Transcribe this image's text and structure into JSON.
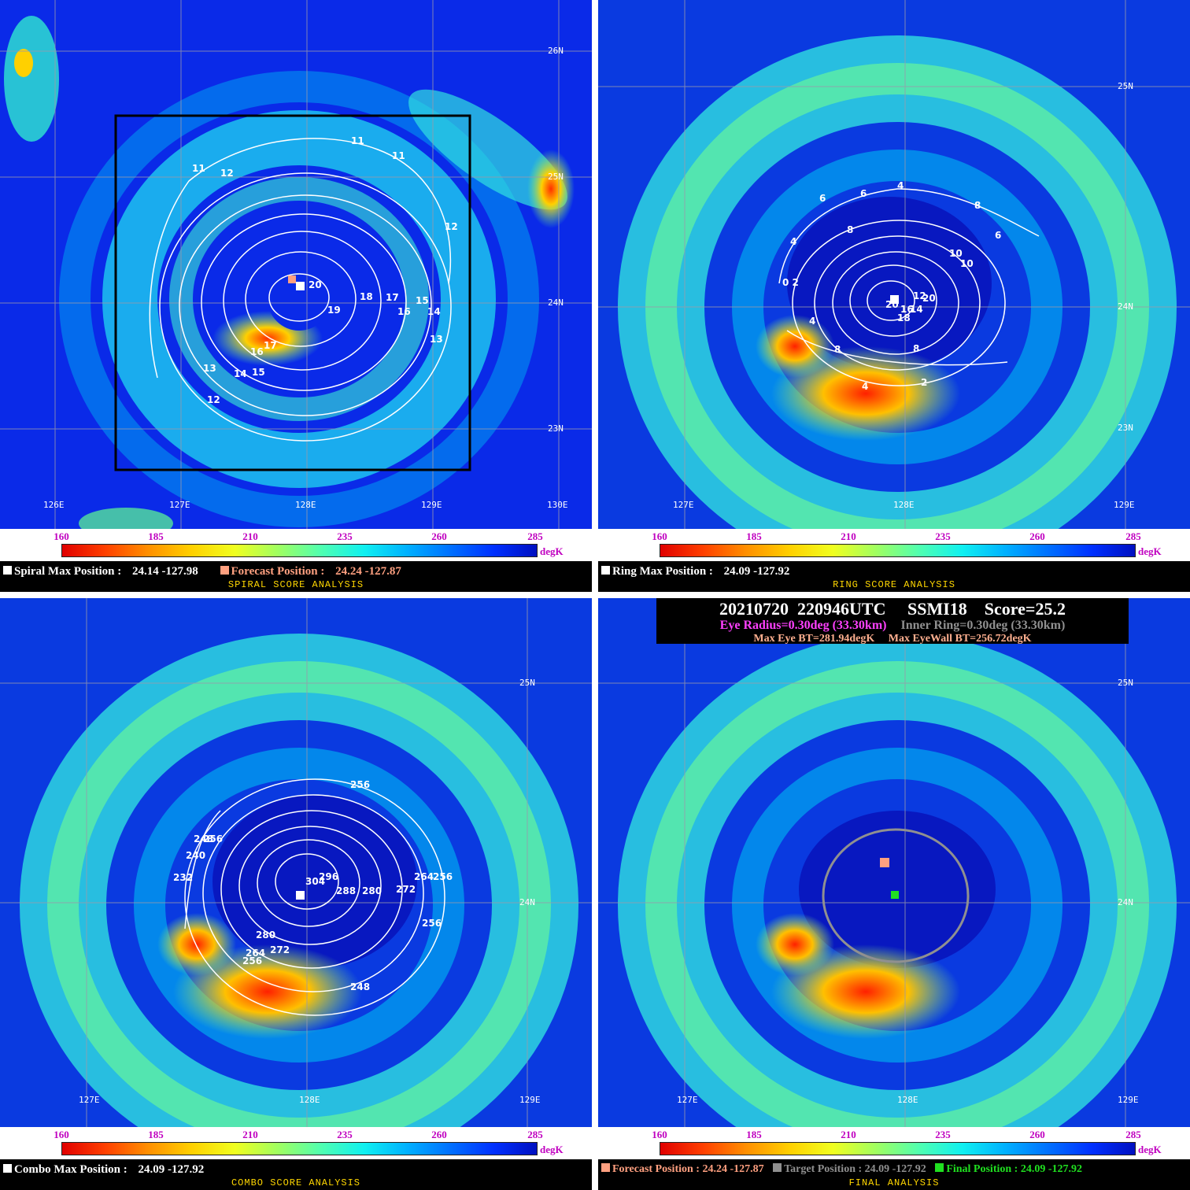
{
  "panels": {
    "spiral": {
      "latitudes": [
        "26N",
        "25N",
        "24N",
        "23N"
      ],
      "longitudes": [
        "126E",
        "127E",
        "128E",
        "129E",
        "130E"
      ],
      "contour_labels": [
        "11",
        "11",
        "11",
        "12",
        "12",
        "20",
        "18",
        "17",
        "15",
        "19",
        "16",
        "14",
        "13",
        "17",
        "16",
        "13",
        "14",
        "15",
        "12"
      ],
      "max_label": "Spiral Max Position :",
      "max_value": "24.14 -127.98",
      "forecast_label": "Forecast Position :",
      "forecast_value": "24.24 -127.87",
      "title": "SPIRAL SCORE ANALYSIS"
    },
    "ring": {
      "latitudes": [
        "25N",
        "24N",
        "23N"
      ],
      "longitudes": [
        "127E",
        "128E",
        "129E"
      ],
      "contour_labels": [
        "4",
        "6",
        "6",
        "8",
        "6",
        "8",
        "4",
        "10",
        "10",
        "0 2",
        "12",
        "20",
        "20",
        "16",
        "14",
        "4",
        "18",
        "8",
        "8",
        "4",
        "2"
      ],
      "max_label": "Ring Max Position :",
      "max_value": "24.09 -127.92",
      "title": "RING SCORE ANALYSIS"
    },
    "combo": {
      "latitudes": [
        "25N",
        "24N"
      ],
      "longitudes": [
        "127E",
        "128E",
        "129E"
      ],
      "contour_labels": [
        "256",
        "248",
        "256",
        "240",
        "232",
        "304",
        "296",
        "288",
        "280",
        "272",
        "264",
        "256",
        "256",
        "280",
        "264",
        "272",
        "256",
        "248"
      ],
      "max_label": "Combo Max Position :",
      "max_value": "24.09 -127.92",
      "title": "COMBO SCORE ANALYSIS"
    },
    "final": {
      "latitudes": [
        "25N",
        "24N"
      ],
      "longitudes": [
        "127E",
        "128E",
        "129E"
      ],
      "header_line1": "20210720  220946UTC     SSMI18    Score=25.2",
      "eye_radius": "Eye Radius=0.30deg (33.30km)",
      "inner_ring": "Inner Ring=0.30deg (33.30km)",
      "max_eye_bt": "Max Eye BT=281.94degK",
      "max_eyewall_bt": "Max EyeWall BT=256.72degK",
      "forecast_label": "Forecast Position : 24.24 -127.87",
      "target_label": "Target Position : 24.09 -127.92",
      "final_label": "Final Position : 24.09 -127.92",
      "title": "FINAL ANALYSIS"
    }
  },
  "legend": {
    "ticks": [
      "160",
      "185",
      "210",
      "235",
      "260",
      "285"
    ],
    "unit": "degK"
  },
  "colors": {
    "forecast": "#ffa080",
    "target": "#909090",
    "final": "#20e020",
    "max_marker": "#ffffff",
    "eye_radius_text": "#ff40ff",
    "inner_ring_text": "#909090",
    "info_text": "#ffffff"
  }
}
